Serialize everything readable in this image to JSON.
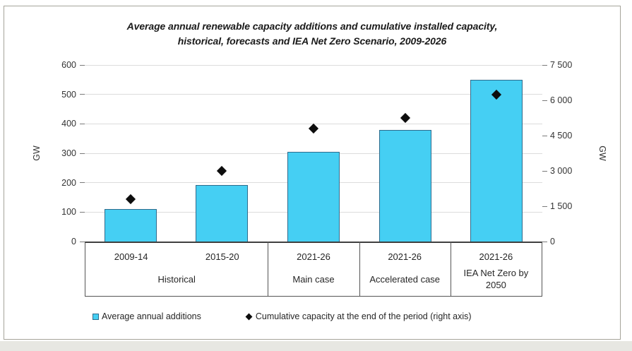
{
  "page": {
    "card_border_color": "#a5a49a",
    "bottom_strip_color": "#e7e7e2",
    "background": "#ffffff"
  },
  "header": {
    "title_line1": "Average annual renewable capacity additions and cumulative installed capacity,",
    "title_line2": "historical, forecasts and IEA Net Zero Scenario, 2009-2026"
  },
  "chart_data": {
    "type": "bar",
    "title": "Average annual renewable capacity additions and cumulative installed capacity, historical, forecasts and IEA Net Zero Scenario, 2009-2026",
    "categories": [
      "2009-14",
      "2015-20",
      "2021-26",
      "2021-26",
      "2021-26"
    ],
    "groups": [
      {
        "label": "Historical",
        "span": 2
      },
      {
        "label": "Main case",
        "span": 1
      },
      {
        "label": "Accelerated case",
        "span": 1
      },
      {
        "label": "IEA Net Zero by 2050",
        "span": 1
      }
    ],
    "series": [
      {
        "name": "Average annual additions",
        "type": "bar",
        "axis": "left",
        "values": [
          110,
          192,
          305,
          380,
          550
        ],
        "fill_color": "#45cff3",
        "border_color": "#2f6b8c"
      },
      {
        "name": "Cumulative capacity at the end of the period (right axis)",
        "type": "scatter",
        "marker": "diamond",
        "axis": "right",
        "values": [
          1800,
          3000,
          4800,
          5250,
          6250
        ],
        "color": "#0d0d0d"
      }
    ],
    "left_axis": {
      "label": "GW",
      "min": 0,
      "max": 600,
      "tick_values": [
        0,
        100,
        200,
        300,
        400,
        500,
        600
      ],
      "tick_labels": [
        "0",
        "100",
        "200",
        "300",
        "400",
        "500",
        "600"
      ]
    },
    "right_axis": {
      "label": "GW",
      "min": 0,
      "max": 7500,
      "tick_values": [
        0,
        1500,
        3000,
        4500,
        6000,
        7500
      ],
      "tick_labels": [
        "0",
        "1 500",
        "3 000",
        "4 500",
        "6 000",
        "7 500"
      ]
    },
    "grid": true,
    "legend_position": "bottom"
  },
  "legend": {
    "items": [
      {
        "label": "Average annual additions",
        "marker": "square"
      },
      {
        "label": "Cumulative capacity at the end of the period (right axis)",
        "marker": "diamond"
      }
    ]
  }
}
